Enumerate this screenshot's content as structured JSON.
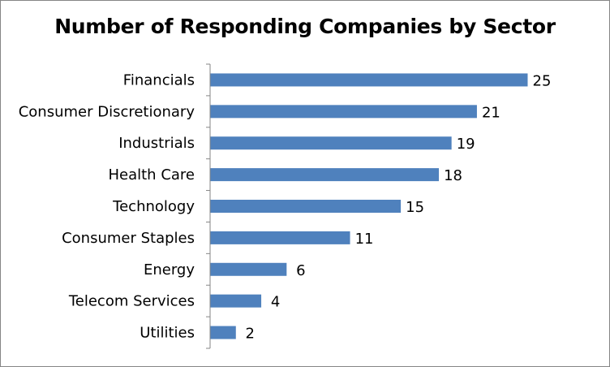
{
  "chart_data": {
    "type": "bar",
    "orientation": "horizontal",
    "title": "Number of Responding Companies by Sector",
    "xlabel": "",
    "ylabel": "",
    "categories": [
      "Financials",
      "Consumer Discretionary",
      "Industrials",
      "Health Care",
      "Technology",
      "Consumer Staples",
      "Energy",
      "Telecom Services",
      "Utilities"
    ],
    "values": [
      25,
      21,
      19,
      18,
      15,
      11,
      6,
      4,
      2
    ],
    "xlim": [
      0,
      25
    ],
    "grid": false,
    "legend": "none",
    "data_labels": true,
    "bar_color": "#4F81BD"
  }
}
